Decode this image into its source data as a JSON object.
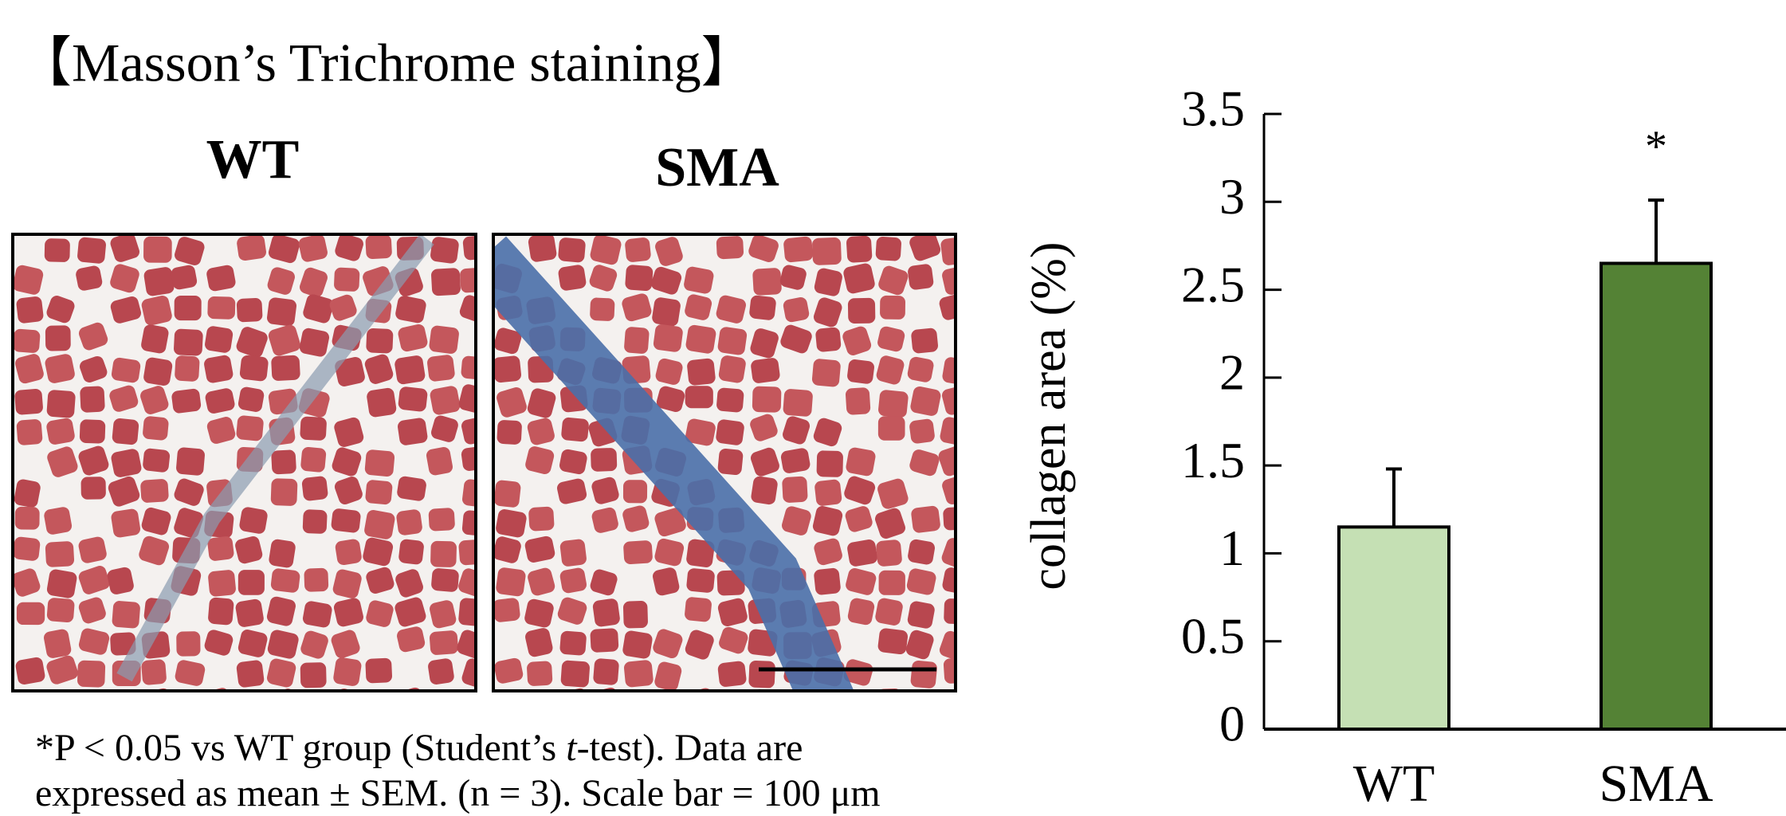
{
  "header": {
    "title": "【Masson’s Trichrome staining】"
  },
  "panels": {
    "labels": [
      "WT",
      "SMA"
    ]
  },
  "footnote": {
    "line1": [
      "*P < 0.05 vs WT group (Student’s ",
      "t",
      "-test). Data are"
    ],
    "line2": "expressed as mean ± SEM. (n = 3). Scale bar = 100 μm"
  },
  "chart_data": {
    "type": "bar",
    "y_label": "collagen area (%)",
    "categories": [
      "WT",
      "SMA"
    ],
    "values": [
      1.15,
      2.65
    ],
    "errors": [
      0.33,
      0.36
    ],
    "significance": [
      null,
      "*"
    ],
    "colors": [
      "#c5e0b4",
      "#548235"
    ],
    "ylim": [
      0,
      3.5
    ],
    "yticks": [
      0,
      0.5,
      1,
      1.5,
      2,
      2.5,
      3,
      3.5
    ]
  }
}
